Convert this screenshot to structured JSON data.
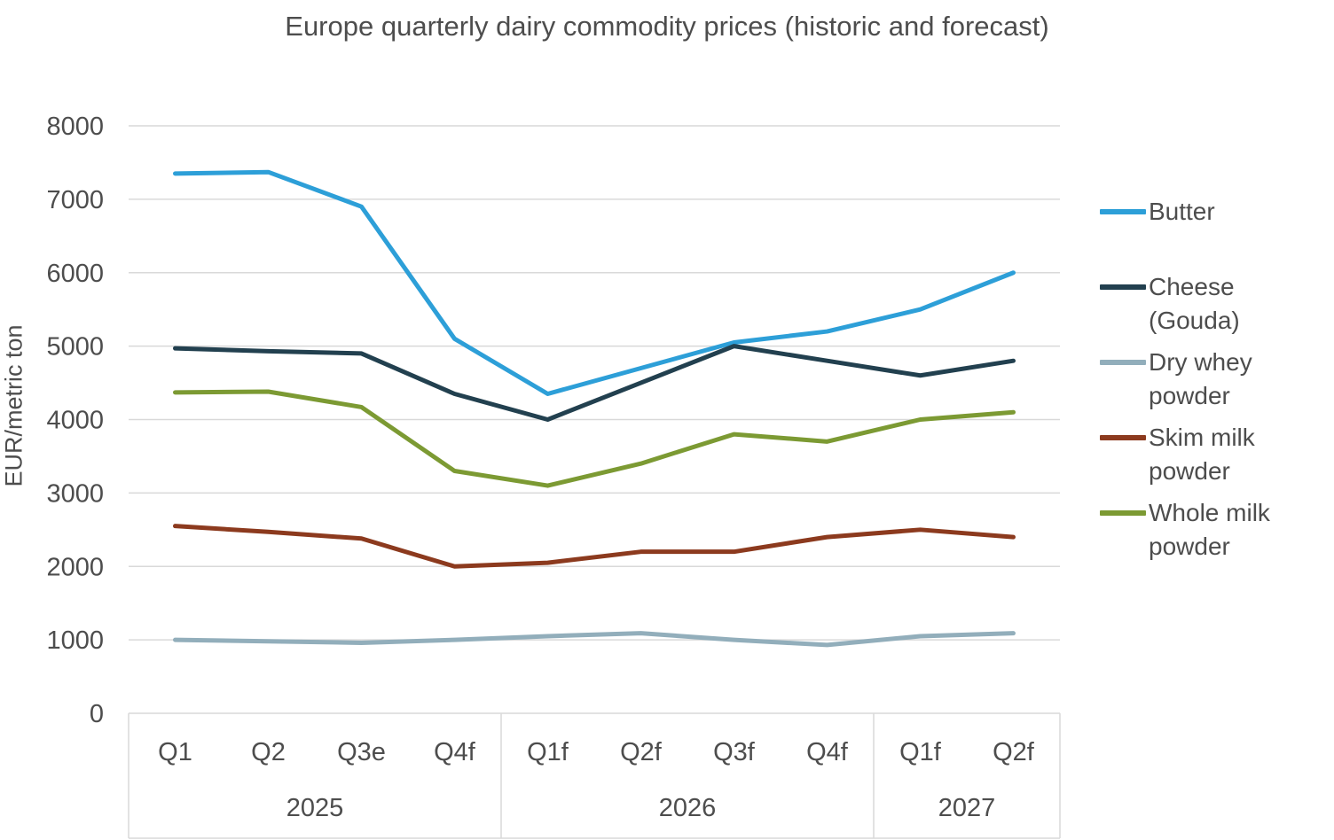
{
  "chart_data": {
    "type": "line",
    "title": "Europe quarterly dairy commodity prices (historic and forecast)",
    "ylabel": "EUR/metric ton",
    "ylim": [
      0,
      8000
    ],
    "ytick_step": 1000,
    "grid": true,
    "legend_position": "right",
    "categories": [
      "Q1",
      "Q2",
      "Q3e",
      "Q4f",
      "Q1f",
      "Q2f",
      "Q3f",
      "Q4f",
      "Q1f",
      "Q2f"
    ],
    "year_groups": [
      {
        "label": "2025",
        "span": 4
      },
      {
        "label": "2026",
        "span": 4
      },
      {
        "label": "2027",
        "span": 2
      }
    ],
    "series": [
      {
        "name": "Butter",
        "color": "#2D9FD8",
        "values": [
          7350,
          7370,
          6900,
          5100,
          4350,
          4700,
          5050,
          5200,
          5500,
          6000
        ]
      },
      {
        "name": "Cheese (Gouda)",
        "color": "#22404F",
        "values": [
          4970,
          4930,
          4900,
          4350,
          4000,
          4500,
          5000,
          4800,
          4600,
          4800
        ]
      },
      {
        "name": "Dry whey powder",
        "color": "#92AEBB",
        "values": [
          1000,
          980,
          960,
          1000,
          1050,
          1090,
          1000,
          930,
          1050,
          1090
        ]
      },
      {
        "name": "Skim milk powder",
        "color": "#8C3A1E",
        "values": [
          2550,
          2470,
          2380,
          2000,
          2050,
          2200,
          2200,
          2400,
          2500,
          2400
        ]
      },
      {
        "name": "Whole milk powder",
        "color": "#7C9A33",
        "values": [
          4370,
          4380,
          4170,
          3300,
          3100,
          3400,
          3800,
          3700,
          4000,
          4100
        ]
      }
    ],
    "colors": {
      "gridline": "#d9d9d9",
      "text": "#4d4d4d"
    }
  }
}
